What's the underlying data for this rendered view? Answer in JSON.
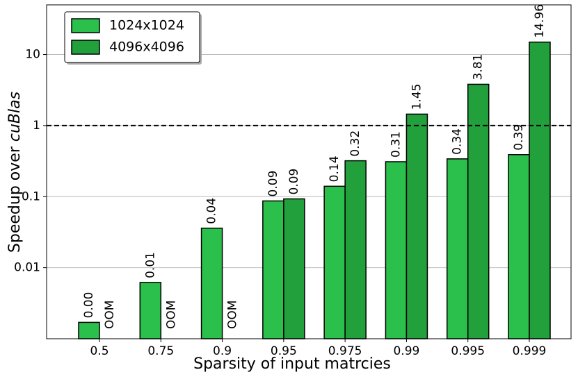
{
  "chart_data": {
    "type": "bar",
    "log_y": true,
    "xlabel": "Sparsity of input matrcies",
    "ylabel": {
      "text": "Speedup over",
      "emphasis": "cuBlas"
    },
    "categories": [
      "0.5",
      "0.75",
      "0.9",
      "0.95",
      "0.975",
      "0.99",
      "0.995",
      "0.999"
    ],
    "series": [
      {
        "name": "1024x1024",
        "color": "#2bbf4b",
        "values": [
          0.0017,
          0.0062,
          0.036,
          0.087,
          0.14,
          0.31,
          0.34,
          0.39
        ],
        "value_labels": [
          "0.00",
          "0.01",
          "0.04",
          "0.09",
          "0.14",
          "0.31",
          "0.34",
          "0.39"
        ]
      },
      {
        "name": "4096x4096",
        "color": "#22a03c",
        "values": [
          null,
          null,
          null,
          0.093,
          0.32,
          1.45,
          3.81,
          14.96
        ],
        "value_labels": [
          "OOM",
          "OOM",
          "OOM",
          "0.09",
          "0.32",
          "1.45",
          "3.81",
          "14.96"
        ]
      }
    ],
    "ylim": [
      0.001,
      50
    ],
    "yticks": [
      0.01,
      0.1,
      1,
      10
    ],
    "grid": true,
    "hline": 1,
    "legend": "upper-left"
  }
}
